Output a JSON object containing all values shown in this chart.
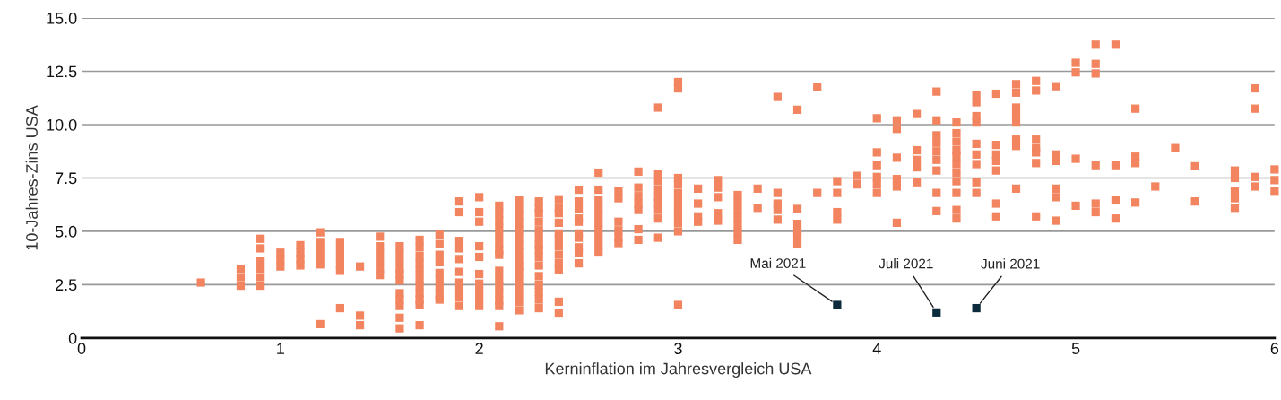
{
  "chart_data": {
    "type": "scatter",
    "xlabel": "Kerninflation im Jahresvergleich USA",
    "ylabel": "10-Jahres-Zins USA",
    "xlim": [
      0,
      6
    ],
    "xticks": [
      0,
      1,
      2,
      3,
      4,
      5,
      6
    ],
    "ylim": [
      0,
      15
    ],
    "yticks": [
      0,
      {
        "value": 2.5,
        "label": "2.5"
      },
      {
        "value": 5,
        "label": "5.0"
      },
      {
        "value": 7.5,
        "label": "7.5"
      },
      {
        "value": 10,
        "label": "10.0"
      },
      {
        "value": 12.5,
        "label": "12.5"
      },
      {
        "value": 15,
        "label": "15.0"
      }
    ],
    "grid": "y",
    "marker": "square",
    "series": [
      {
        "color": "#f2845f",
        "x": [
          0.6,
          0.8,
          0.8,
          0.8,
          0.9,
          0.9,
          0.9,
          0.9,
          0.9,
          0.9,
          1.0,
          1.0,
          1.0,
          1.1,
          1.1,
          1.1,
          1.1,
          1.2,
          1.2,
          1.2,
          1.2,
          1.2,
          1.2,
          1.3,
          1.3,
          1.3,
          1.3,
          1.3,
          1.3,
          1.4,
          1.4,
          1.4,
          1.5,
          1.5,
          1.5,
          1.5,
          1.5,
          1.5,
          1.6,
          1.6,
          1.6,
          1.6,
          1.6,
          1.6,
          1.6,
          1.6,
          1.6,
          1.6,
          1.6,
          1.7,
          1.7,
          1.7,
          1.7,
          1.7,
          1.7,
          1.7,
          1.7,
          1.7,
          1.7,
          1.7,
          1.8,
          1.8,
          1.8,
          1.8,
          1.8,
          1.8,
          1.8,
          1.8,
          1.8,
          1.9,
          1.9,
          1.9,
          1.9,
          1.9,
          1.9,
          1.9,
          1.9,
          1.9,
          1.9,
          2.0,
          2.0,
          2.0,
          2.0,
          2.0,
          2.0,
          2.0,
          2.0,
          2.0,
          2.0,
          2.1,
          2.1,
          2.1,
          2.1,
          2.1,
          2.1,
          2.1,
          2.1,
          2.1,
          2.1,
          2.1,
          2.1,
          2.1,
          2.1,
          2.1,
          2.2,
          2.2,
          2.2,
          2.2,
          2.2,
          2.2,
          2.2,
          2.2,
          2.2,
          2.2,
          2.2,
          2.2,
          2.2,
          2.2,
          2.2,
          2.2,
          2.3,
          2.3,
          2.3,
          2.3,
          2.3,
          2.3,
          2.3,
          2.3,
          2.3,
          2.3,
          2.3,
          2.3,
          2.3,
          2.3,
          2.3,
          2.4,
          2.4,
          2.4,
          2.4,
          2.4,
          2.4,
          2.4,
          2.4,
          2.4,
          2.4,
          2.4,
          2.4,
          2.5,
          2.5,
          2.5,
          2.5,
          2.5,
          2.5,
          2.5,
          2.5,
          2.5,
          2.5,
          2.6,
          2.6,
          2.6,
          2.6,
          2.6,
          2.6,
          2.6,
          2.6,
          2.6,
          2.6,
          2.7,
          2.7,
          2.7,
          2.7,
          2.7,
          2.7,
          2.8,
          2.8,
          2.8,
          2.8,
          2.8,
          2.8,
          2.8,
          2.9,
          2.9,
          2.9,
          2.9,
          2.9,
          2.9,
          2.9,
          2.9,
          2.9,
          3.0,
          3.0,
          3.0,
          3.0,
          3.0,
          3.0,
          3.0,
          3.0,
          3.0,
          3.0,
          3.0,
          3.1,
          3.1,
          3.1,
          3.1,
          3.2,
          3.2,
          3.2,
          3.2,
          3.2,
          3.3,
          3.3,
          3.3,
          3.3,
          3.3,
          3.3,
          3.3,
          3.4,
          3.4,
          3.5,
          3.5,
          3.5,
          3.5,
          3.5,
          3.6,
          3.6,
          3.6,
          3.6,
          3.6,
          3.6,
          3.7,
          3.7,
          3.8,
          3.8,
          3.8,
          3.8,
          3.9,
          3.9,
          4.0,
          4.0,
          4.0,
          4.0,
          4.0,
          4.0,
          4.1,
          4.1,
          4.1,
          4.1,
          4.1,
          4.1,
          4.2,
          4.2,
          4.2,
          4.2,
          4.2,
          4.3,
          4.3,
          4.3,
          4.3,
          4.3,
          4.3,
          4.3,
          4.3,
          4.3,
          4.4,
          4.4,
          4.4,
          4.4,
          4.4,
          4.4,
          4.4,
          4.4,
          4.4,
          4.4,
          4.4,
          4.5,
          4.5,
          4.5,
          4.5,
          4.5,
          4.5,
          4.5,
          4.5,
          4.5,
          4.6,
          4.6,
          4.6,
          4.6,
          4.6,
          4.6,
          4.6,
          4.7,
          4.7,
          4.7,
          4.7,
          4.7,
          4.7,
          4.7,
          4.7,
          4.8,
          4.8,
          4.8,
          4.8,
          4.8,
          4.8,
          4.8,
          4.9,
          4.9,
          4.9,
          4.9,
          4.9,
          4.9,
          5.0,
          5.0,
          5.0,
          5.0,
          5.1,
          5.1,
          5.1,
          5.1,
          5.1,
          5.1,
          5.2,
          5.2,
          5.2,
          5.2,
          5.3,
          5.3,
          5.3,
          5.3,
          5.4,
          5.5,
          5.6,
          5.6,
          5.8,
          5.8,
          5.8,
          5.8,
          5.8,
          5.9,
          5.9,
          5.9,
          5.9,
          6.0,
          6.0,
          6.0
        ],
        "values": [
          2.6,
          3.25,
          2.85,
          2.45,
          4.65,
          4.2,
          3.6,
          3.25,
          2.85,
          2.45,
          4.0,
          3.7,
          3.35,
          4.35,
          4.0,
          3.7,
          3.4,
          4.95,
          4.5,
          4.15,
          3.8,
          3.45,
          0.65,
          4.5,
          4.15,
          3.8,
          3.45,
          3.15,
          1.4,
          3.35,
          1.05,
          0.6,
          4.75,
          4.3,
          3.95,
          3.6,
          3.25,
          2.95,
          4.3,
          3.95,
          3.6,
          3.25,
          3.0,
          2.7,
          2.1,
          1.8,
          1.5,
          0.95,
          0.45,
          4.6,
          4.25,
          3.85,
          3.5,
          3.15,
          2.8,
          2.45,
          2.1,
          1.8,
          1.55,
          0.6,
          4.85,
          4.4,
          3.9,
          3.55,
          3.05,
          2.7,
          2.35,
          2.0,
          1.8,
          6.4,
          5.9,
          4.55,
          4.2,
          3.7,
          3.1,
          2.6,
          2.25,
          1.9,
          1.5,
          6.6,
          5.9,
          5.45,
          4.3,
          3.8,
          3.0,
          2.55,
          2.2,
          1.85,
          1.5,
          6.2,
          5.85,
          5.5,
          5.15,
          4.8,
          4.45,
          4.1,
          3.9,
          3.15,
          2.8,
          2.45,
          2.1,
          1.75,
          1.5,
          0.55,
          6.45,
          6.1,
          5.75,
          5.4,
          5.05,
          4.7,
          4.35,
          4.0,
          3.65,
          3.35,
          3.1,
          2.75,
          2.4,
          2.05,
          1.7,
          1.3,
          6.4,
          6.1,
          5.85,
          5.45,
          5.05,
          4.7,
          4.35,
          4.15,
          3.8,
          3.4,
          2.9,
          2.5,
          2.15,
          1.8,
          1.4,
          6.5,
          6.1,
          5.85,
          5.4,
          4.9,
          4.65,
          4.3,
          3.9,
          3.5,
          3.2,
          1.7,
          1.15,
          6.95,
          6.4,
          6.05,
          5.6,
          5.45,
          4.9,
          4.7,
          4.25,
          4.0,
          3.5,
          7.75,
          6.95,
          6.45,
          6.1,
          5.75,
          5.4,
          5.05,
          4.7,
          4.35,
          4.05,
          6.9,
          6.55,
          5.45,
          5.05,
          4.7,
          4.45,
          7.8,
          7.05,
          6.65,
          6.3,
          6.0,
          5.1,
          4.6,
          10.8,
          7.7,
          7.35,
          6.95,
          6.6,
          6.35,
          6.0,
          5.6,
          4.7,
          12.0,
          11.7,
          7.5,
          7.2,
          6.8,
          6.45,
          6.1,
          5.75,
          5.4,
          5.0,
          1.55,
          7.0,
          6.3,
          5.7,
          5.45,
          7.4,
          7.05,
          6.6,
          5.85,
          5.5,
          6.7,
          6.35,
          6.0,
          5.65,
          5.3,
          4.95,
          4.6,
          7.0,
          6.1,
          11.3,
          6.8,
          6.3,
          6.0,
          5.55,
          10.7,
          6.05,
          5.35,
          5.0,
          4.75,
          4.4,
          11.75,
          6.8,
          7.35,
          6.8,
          5.9,
          5.55,
          7.6,
          7.2,
          10.3,
          8.7,
          8.1,
          7.55,
          7.2,
          6.8,
          10.2,
          9.8,
          8.45,
          7.45,
          7.1,
          5.4,
          10.5,
          8.8,
          8.35,
          8.0,
          7.3,
          11.55,
          10.2,
          9.5,
          9.15,
          8.75,
          8.35,
          7.85,
          6.8,
          5.95,
          10.1,
          9.6,
          9.2,
          8.8,
          8.5,
          8.15,
          7.75,
          7.35,
          6.8,
          6.0,
          5.6,
          11.4,
          11.05,
          10.4,
          10.1,
          9.1,
          8.6,
          8.15,
          7.3,
          6.8,
          11.45,
          9.05,
          8.6,
          8.3,
          7.85,
          6.3,
          5.7,
          11.9,
          11.5,
          10.8,
          10.45,
          10.1,
          9.3,
          9.0,
          7.0,
          12.05,
          11.6,
          9.3,
          8.9,
          8.7,
          8.2,
          5.7,
          11.8,
          8.6,
          8.3,
          7.0,
          6.6,
          5.5,
          12.9,
          12.45,
          8.4,
          6.2,
          13.75,
          12.85,
          12.4,
          8.1,
          6.3,
          5.9,
          13.75,
          8.1,
          6.45,
          5.6,
          10.75,
          8.5,
          8.2,
          6.35,
          7.1,
          8.9,
          8.05,
          6.4,
          7.85,
          7.5,
          6.9,
          6.55,
          6.1,
          11.7,
          10.75,
          7.55,
          7.1,
          7.9,
          7.4,
          6.9
        ]
      },
      {
        "color": "#0b2b3c",
        "x": [
          3.8,
          4.3,
          4.5
        ],
        "values": [
          1.55,
          1.2,
          1.4
        ]
      }
    ],
    "annotations": [
      {
        "text": "Mai 2021",
        "x": 3.8,
        "y": 1.55
      },
      {
        "text": "Juli 2021",
        "x": 4.3,
        "y": 1.2
      },
      {
        "text": "Juni 2021",
        "x": 4.5,
        "y": 1.4
      }
    ]
  }
}
